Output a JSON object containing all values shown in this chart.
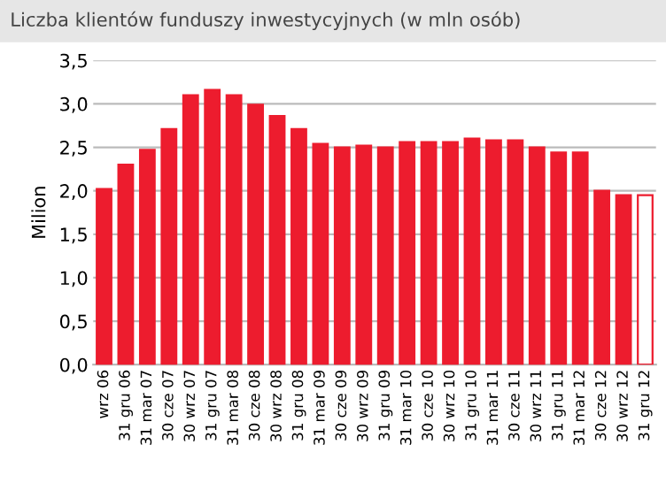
{
  "chart_data": {
    "type": "bar",
    "title": "Liczba klientów funduszy inwestycyjnych (w mln osób)",
    "ylabel": "Milion",
    "categories": [
      "wrz 06",
      "31 gru 06",
      "31 mar 07",
      "30 cze 07",
      "30 wrz 07",
      "31 gru 07",
      "31 mar 08",
      "30 cze 08",
      "30 wrz 08",
      "31 gru 08",
      "31 mar 09",
      "30 cze 09",
      "30 wrz 09",
      "31 gru 09",
      "31 mar 10",
      "30 cze 10",
      "30 wrz 10",
      "31 gru 10",
      "31 mar 11",
      "30 cze 11",
      "30 wrz 11",
      "31 gru 11",
      "31 mar 12",
      "30 cze 12",
      "30 wrz 12",
      "31 gru 12"
    ],
    "series": [
      {
        "color": "#ed1c2e",
        "values": [
          2.02,
          2.3,
          2.47,
          2.71,
          3.1,
          3.16,
          3.1,
          2.99,
          2.86,
          2.71,
          2.54,
          2.5,
          2.52,
          2.5,
          2.56,
          2.56,
          2.56,
          2.6,
          2.58,
          2.58,
          2.5,
          2.44,
          2.44,
          2.0,
          1.95,
          1.95
        ],
        "colors": [
          "#ed1c2e",
          "#ed1c2e",
          "#ed1c2e",
          "#ed1c2e",
          "#ed1c2e",
          "#ed1c2e",
          "#ed1c2e",
          "#ed1c2e",
          "#ed1c2e",
          "#ed1c2e",
          "#ed1c2e",
          "#ed1c2e",
          "#ed1c2e",
          "#ed1c2e",
          "#ed1c2e",
          "#ed1c2e",
          "#ed1c2e",
          "#ed1c2e",
          "#ed1c2e",
          "#ed1c2e",
          "#ed1c2e",
          "#ed1c2e",
          "#ed1c2e",
          "#ed1c2e",
          "#ed1c2e",
          "#ffffff"
        ]
      }
    ],
    "ylim": [
      0,
      3.5
    ],
    "yticks": [
      {
        "value": 0,
        "label": "0,0"
      },
      {
        "value": 0.5,
        "label": "0,5"
      },
      {
        "value": 1,
        "label": "1,0"
      },
      {
        "value": 1.5,
        "label": "1,5"
      },
      {
        "value": 2,
        "label": "2,0"
      },
      {
        "value": 2.5,
        "label": "2,5"
      },
      {
        "value": 3,
        "label": "3,0"
      },
      {
        "value": 3.5,
        "label": "3,5"
      }
    ],
    "grid": "y",
    "legend": false
  }
}
